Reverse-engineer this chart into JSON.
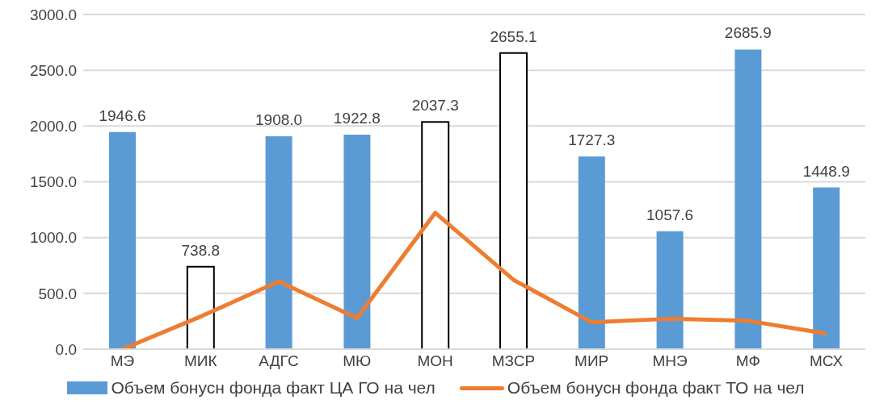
{
  "chart_data": {
    "type": "bar",
    "categories": [
      "МЭ",
      "МИК",
      "АДГС",
      "МЮ",
      "МОН",
      "МЗСР",
      "МИР",
      "МНЭ",
      "МФ",
      "МСХ"
    ],
    "series": [
      {
        "name": "Объем бонусн фонда факт ЦА ГО на чел",
        "color": "#5b9bd5",
        "colors": [
          "#5b9bd5",
          "#ffffff",
          "#5b9bd5",
          "#5b9bd5",
          "#ffffff",
          "#ffffff",
          "#5b9bd5",
          "#5b9bd5",
          "#5b9bd5",
          "#5b9bd5"
        ],
        "values": [
          1946.6,
          738.8,
          1908.0,
          1922.8,
          2037.3,
          2655.1,
          1727.3,
          1057.6,
          2685.9,
          1448.9
        ],
        "value_labels": [
          "1946.6",
          "738.8",
          "1908.0",
          "1922.8",
          "2037.3",
          "2655.1",
          "1727.3",
          "1057.6",
          "2685.9",
          "1448.9"
        ]
      },
      {
        "name": "Объем бонусн фонда факт ТО на чел",
        "type": "line",
        "color": "#ed7d31",
        "values": [
          0,
          292,
          607,
          279,
          1222,
          622,
          241,
          272,
          254,
          140
        ]
      }
    ],
    "ylim": [
      0,
      3000
    ],
    "yticks": [
      {
        "value": 0,
        "label": "0.0"
      },
      {
        "value": 500,
        "label": "500.0"
      },
      {
        "value": 1000,
        "label": "1000.0"
      },
      {
        "value": 1500,
        "label": "1500.0"
      },
      {
        "value": 2000,
        "label": "2000.0"
      },
      {
        "value": 2500,
        "label": "2500.0"
      },
      {
        "value": 3000,
        "label": "3000.0"
      }
    ],
    "grid": "y",
    "legend": "bottom",
    "marker": "none"
  }
}
